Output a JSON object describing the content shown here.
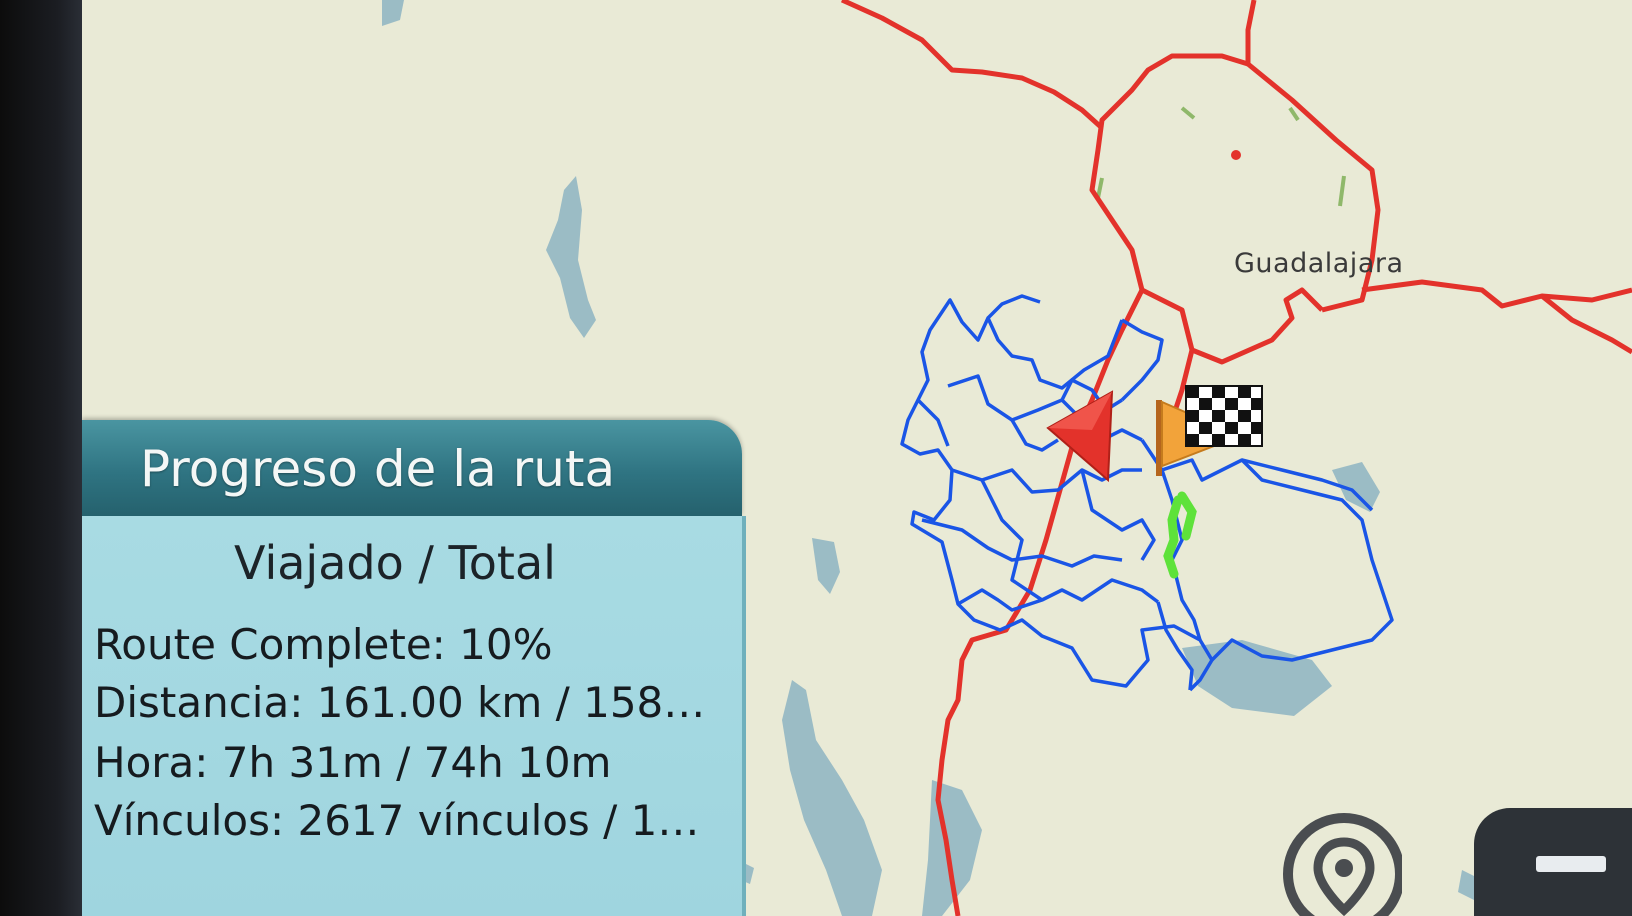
{
  "map": {
    "city_label": "Guadalajara",
    "colors": {
      "background": "#e9ead6",
      "water": "#9bbcc5",
      "highway": "#e3322b",
      "route": "#1a55e6",
      "traveled": "#5ee23a"
    },
    "markers": {
      "current_position": "red-direction-arrow-icon",
      "destination": "checkered-flag-icon",
      "start": "orange-flag-icon"
    }
  },
  "route_progress": {
    "title": "Progreso de la ruta",
    "subtitle": "Viajado / Total",
    "route_complete": "Route Complete: 10%",
    "distance": "Distancia: 161.00 km / 158…",
    "time": "Hora: 7h 31m / 74h 10m",
    "links": "Vínculos: 2617 vínculos / 1…",
    "percent_complete": 10
  },
  "controls": {
    "locate_icon": "location-pin-icon",
    "zoom_out_icon": "minus-icon"
  }
}
